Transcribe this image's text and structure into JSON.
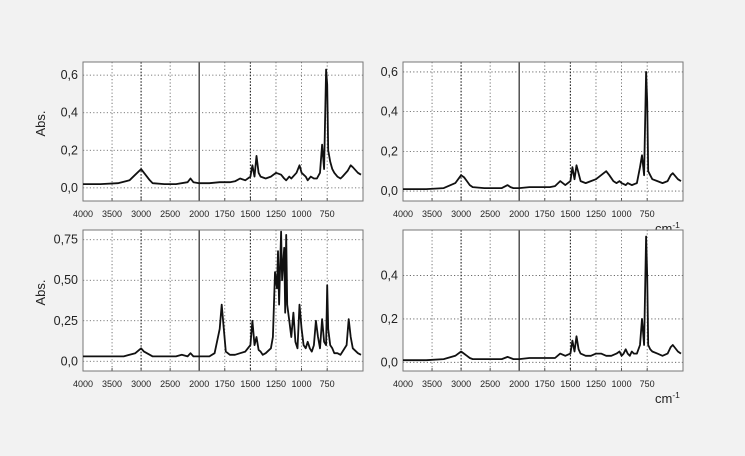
{
  "chart_data": [
    {
      "type": "line",
      "ylabel": "Abs.",
      "xlabel": "",
      "xlim": [
        4000,
        400
      ],
      "ylim": [
        -0.07,
        0.67
      ],
      "x_ticks": [
        4000,
        3500,
        3000,
        2500,
        2000,
        1750,
        1500,
        1250,
        1000,
        750
      ],
      "x_tick_labels": [
        "4000",
        "3500",
        "3000",
        "2500",
        "2000",
        "1750",
        "1500",
        "1250",
        "1000",
        "750"
      ],
      "y_ticks": [
        0.0,
        0.2,
        0.4,
        0.6
      ],
      "y_tick_labels": [
        "0,0",
        "0,2",
        "0,4",
        "0,6"
      ],
      "x_scale_break": 2000,
      "grid": "dotted",
      "series": [
        {
          "x": [
            4000,
            3700,
            3400,
            3200,
            3100,
            3000,
            2950,
            2900,
            2850,
            2800,
            2600,
            2400,
            2200,
            2150,
            2100,
            2000,
            1900,
            1800,
            1700,
            1650,
            1600,
            1550,
            1500,
            1480,
            1460,
            1440,
            1420,
            1400,
            1350,
            1300,
            1250,
            1200,
            1170,
            1150,
            1120,
            1100,
            1050,
            1020,
            1000,
            960,
            940,
            910,
            880,
            850,
            820,
            800,
            780,
            760,
            750,
            740,
            720,
            700,
            680,
            650,
            620,
            600,
            550,
            520,
            500,
            450,
            420
          ],
          "y": [
            0.02,
            0.02,
            0.025,
            0.04,
            0.07,
            0.1,
            0.08,
            0.06,
            0.04,
            0.025,
            0.02,
            0.02,
            0.03,
            0.05,
            0.03,
            0.025,
            0.025,
            0.03,
            0.03,
            0.035,
            0.05,
            0.04,
            0.06,
            0.12,
            0.06,
            0.17,
            0.08,
            0.06,
            0.05,
            0.06,
            0.08,
            0.07,
            0.05,
            0.04,
            0.06,
            0.05,
            0.08,
            0.12,
            0.08,
            0.06,
            0.04,
            0.06,
            0.05,
            0.05,
            0.08,
            0.23,
            0.1,
            0.63,
            0.55,
            0.2,
            0.14,
            0.1,
            0.08,
            0.06,
            0.05,
            0.06,
            0.09,
            0.12,
            0.11,
            0.08,
            0.07
          ]
        }
      ]
    },
    {
      "type": "line",
      "ylabel": "",
      "xlabel": "cm-1",
      "xlim": [
        4000,
        400
      ],
      "ylim": [
        -0.05,
        0.65
      ],
      "x_ticks": [
        4000,
        3500,
        3000,
        2500,
        2000,
        1750,
        1500,
        1250,
        1000,
        750
      ],
      "x_tick_labels": [
        "4000",
        "3500",
        "3000",
        "2500",
        "2000",
        "1750",
        "1500",
        "1250",
        "1000",
        "750"
      ],
      "y_ticks": [
        0.0,
        0.2,
        0.4,
        0.6
      ],
      "y_tick_labels": [
        "0,0",
        "0,2",
        "0,4",
        "0,6"
      ],
      "x_scale_break": 2000,
      "grid": "dotted",
      "series": [
        {
          "x": [
            4000,
            3600,
            3300,
            3100,
            3000,
            2950,
            2900,
            2850,
            2800,
            2600,
            2400,
            2300,
            2200,
            2150,
            2100,
            2000,
            1900,
            1800,
            1700,
            1650,
            1600,
            1550,
            1500,
            1480,
            1460,
            1440,
            1400,
            1350,
            1300,
            1250,
            1200,
            1150,
            1120,
            1080,
            1050,
            1020,
            1000,
            960,
            940,
            900,
            850,
            820,
            800,
            780,
            760,
            750,
            740,
            720,
            700,
            650,
            600,
            550,
            520,
            500,
            450,
            420
          ],
          "y": [
            0.01,
            0.01,
            0.015,
            0.04,
            0.08,
            0.07,
            0.05,
            0.03,
            0.02,
            0.015,
            0.015,
            0.015,
            0.03,
            0.02,
            0.015,
            0.015,
            0.02,
            0.02,
            0.02,
            0.025,
            0.05,
            0.03,
            0.05,
            0.12,
            0.06,
            0.13,
            0.05,
            0.04,
            0.05,
            0.06,
            0.08,
            0.1,
            0.08,
            0.05,
            0.04,
            0.05,
            0.04,
            0.03,
            0.04,
            0.03,
            0.04,
            0.12,
            0.18,
            0.08,
            0.6,
            0.45,
            0.1,
            0.08,
            0.06,
            0.05,
            0.04,
            0.05,
            0.08,
            0.09,
            0.06,
            0.05
          ]
        }
      ]
    },
    {
      "type": "line",
      "ylabel": "Abs.",
      "xlabel": "",
      "xlim": [
        4000,
        400
      ],
      "ylim": [
        -0.06,
        0.81
      ],
      "x_ticks": [
        4000,
        3500,
        3000,
        2500,
        2000,
        1750,
        1500,
        1250,
        1000,
        750
      ],
      "x_tick_labels": [
        "4000",
        "3500",
        "3000",
        "2500",
        "2000",
        "1750",
        "1500",
        "1250",
        "1000",
        "750"
      ],
      "y_ticks": [
        0.0,
        0.25,
        0.5,
        0.75
      ],
      "y_tick_labels": [
        "0,0",
        "0,25",
        "0,50",
        "0,75"
      ],
      "x_scale_break": 2000,
      "grid": "dotted",
      "series": [
        {
          "x": [
            4000,
            3600,
            3300,
            3100,
            3000,
            2950,
            2900,
            2850,
            2800,
            2600,
            2400,
            2300,
            2200,
            2150,
            2100,
            2000,
            1900,
            1850,
            1800,
            1780,
            1760,
            1740,
            1700,
            1650,
            1600,
            1550,
            1500,
            1480,
            1460,
            1440,
            1420,
            1400,
            1380,
            1350,
            1300,
            1280,
            1260,
            1240,
            1230,
            1220,
            1200,
            1190,
            1170,
            1160,
            1150,
            1140,
            1120,
            1100,
            1080,
            1060,
            1040,
            1020,
            1000,
            980,
            960,
            940,
            920,
            900,
            880,
            860,
            840,
            820,
            800,
            780,
            760,
            750,
            740,
            720,
            700,
            680,
            650,
            620,
            600,
            560,
            540,
            520,
            500,
            450,
            420
          ],
          "y": [
            0.03,
            0.03,
            0.03,
            0.05,
            0.08,
            0.06,
            0.05,
            0.04,
            0.03,
            0.03,
            0.03,
            0.04,
            0.03,
            0.05,
            0.03,
            0.03,
            0.03,
            0.05,
            0.2,
            0.35,
            0.2,
            0.06,
            0.04,
            0.04,
            0.05,
            0.06,
            0.1,
            0.25,
            0.1,
            0.15,
            0.07,
            0.06,
            0.04,
            0.05,
            0.08,
            0.15,
            0.55,
            0.45,
            0.68,
            0.35,
            0.8,
            0.5,
            0.7,
            0.3,
            0.78,
            0.35,
            0.25,
            0.15,
            0.3,
            0.12,
            0.08,
            0.35,
            0.2,
            0.1,
            0.08,
            0.12,
            0.08,
            0.06,
            0.1,
            0.25,
            0.15,
            0.08,
            0.26,
            0.12,
            0.1,
            0.47,
            0.2,
            0.1,
            0.08,
            0.05,
            0.05,
            0.04,
            0.06,
            0.1,
            0.26,
            0.15,
            0.08,
            0.05,
            0.04
          ]
        }
      ]
    },
    {
      "type": "line",
      "ylabel": "",
      "xlabel": "cm-1",
      "xlim": [
        4000,
        400
      ],
      "ylim": [
        -0.04,
        0.61
      ],
      "x_ticks": [
        4000,
        3500,
        3000,
        2500,
        2000,
        1750,
        1500,
        1250,
        1000,
        750
      ],
      "x_tick_labels": [
        "4000",
        "3500",
        "3000",
        "2500",
        "2000",
        "1750",
        "1500",
        "1250",
        "1000",
        "750"
      ],
      "y_ticks": [
        0.0,
        0.2,
        0.4
      ],
      "y_tick_labels": [
        "0,0",
        "0,2",
        "0,4"
      ],
      "x_scale_break": 2000,
      "grid": "dotted",
      "series": [
        {
          "x": [
            4000,
            3600,
            3300,
            3100,
            3000,
            2950,
            2900,
            2850,
            2800,
            2600,
            2400,
            2300,
            2200,
            2150,
            2100,
            2000,
            1900,
            1800,
            1700,
            1650,
            1600,
            1550,
            1500,
            1480,
            1460,
            1440,
            1420,
            1400,
            1350,
            1300,
            1250,
            1200,
            1150,
            1100,
            1050,
            1020,
            1000,
            980,
            960,
            940,
            920,
            900,
            880,
            850,
            820,
            800,
            780,
            760,
            750,
            740,
            720,
            700,
            650,
            600,
            550,
            520,
            500,
            450,
            420
          ],
          "y": [
            0.01,
            0.01,
            0.015,
            0.03,
            0.05,
            0.04,
            0.03,
            0.02,
            0.015,
            0.015,
            0.015,
            0.015,
            0.025,
            0.02,
            0.015,
            0.015,
            0.02,
            0.02,
            0.02,
            0.02,
            0.04,
            0.03,
            0.04,
            0.1,
            0.05,
            0.12,
            0.06,
            0.04,
            0.03,
            0.03,
            0.04,
            0.04,
            0.03,
            0.03,
            0.04,
            0.05,
            0.03,
            0.04,
            0.06,
            0.04,
            0.03,
            0.05,
            0.04,
            0.04,
            0.08,
            0.2,
            0.08,
            0.58,
            0.4,
            0.08,
            0.06,
            0.05,
            0.04,
            0.03,
            0.04,
            0.07,
            0.08,
            0.05,
            0.04
          ]
        }
      ]
    }
  ]
}
